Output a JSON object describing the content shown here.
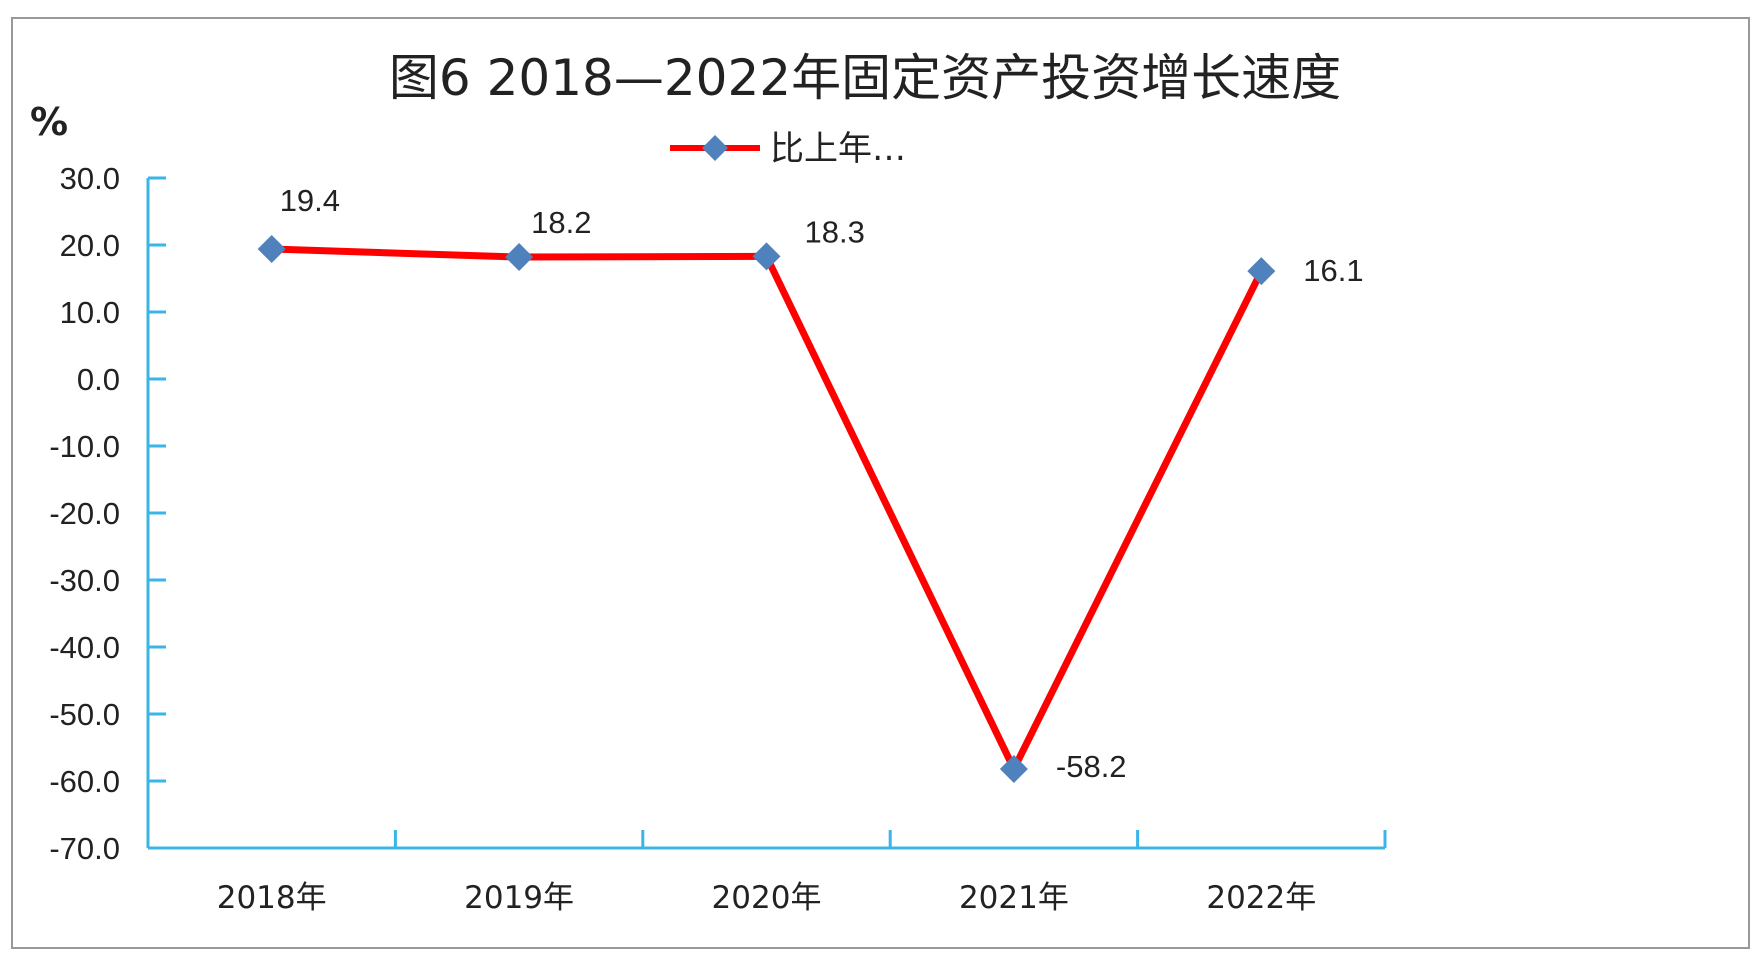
{
  "chart_data": {
    "type": "line",
    "title": "图6  2018—2022年固定资产投资增长速度",
    "ylabel": "%",
    "xlabel": "",
    "categories": [
      "2018年",
      "2019年",
      "2020年",
      "2021年",
      "2022年"
    ],
    "series": [
      {
        "name": "比上年…",
        "values": [
          19.4,
          18.2,
          18.3,
          -58.2,
          16.1
        ],
        "labels": [
          "19.4",
          "18.2",
          "18.3",
          "-58.2",
          "16.1"
        ],
        "line_color": "#ff0000",
        "marker_color": "#4f81bd",
        "marker": "diamond"
      }
    ],
    "ylim": [
      -70.0,
      30.0
    ],
    "yticks": [
      "30.0",
      "20.0",
      "10.0",
      "0.0",
      "-10.0",
      "-20.0",
      "-30.0",
      "-40.0",
      "-50.0",
      "-60.0",
      "-70.0"
    ],
    "ytick_values": [
      30,
      20,
      10,
      0,
      -10,
      -20,
      -30,
      -40,
      -50,
      -60,
      -70
    ],
    "grid": false,
    "legend": "top",
    "axis_color": "#3bb4e8",
    "frame_color": "#999999"
  }
}
